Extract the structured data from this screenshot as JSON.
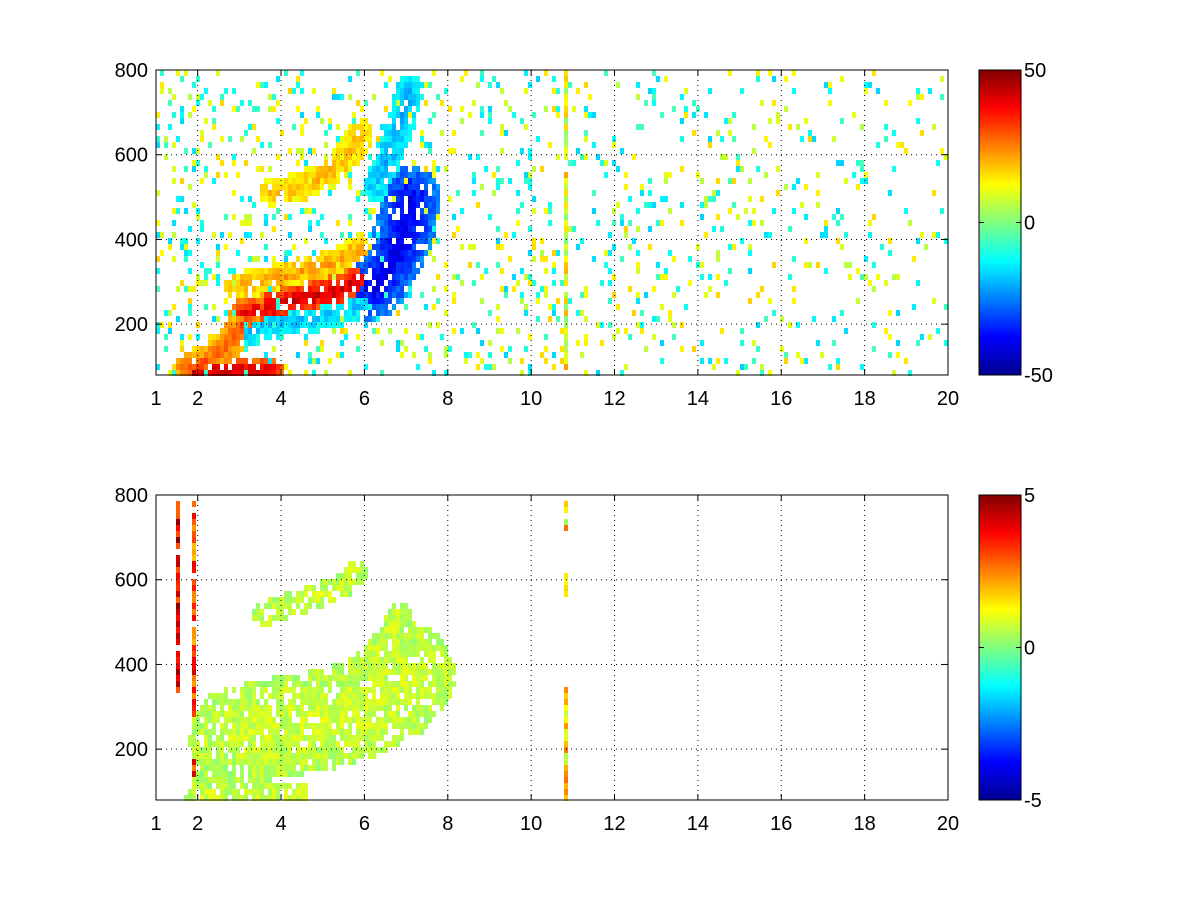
{
  "figure": {
    "background": "#ffffff"
  },
  "chart_data": [
    {
      "type": "heatmap",
      "title": "",
      "xlabel": "",
      "ylabel": "",
      "xlim": [
        1,
        20
      ],
      "ylim": [
        80,
        800
      ],
      "xticks": [
        1,
        2,
        4,
        6,
        8,
        10,
        12,
        14,
        16,
        18,
        20
      ],
      "xtick_labels": [
        "1",
        "2",
        "4",
        "6",
        "8",
        "10",
        "12",
        "14",
        "16",
        "18",
        "20"
      ],
      "yticks": [
        200,
        400,
        600,
        800
      ],
      "ytick_labels": [
        "200",
        "400",
        "600",
        "800"
      ],
      "grid": true,
      "colormap": "jet",
      "clim": [
        -50,
        50
      ],
      "colorbar_ticks": [
        50,
        0,
        -50
      ],
      "colorbar_tick_labels": [
        "50",
        "0",
        "-50"
      ],
      "background_points_density": 0.18,
      "features": [
        {
          "name": "lower-ridge",
          "points": [
            [
              3.2,
              220
            ],
            [
              3.6,
              235
            ],
            [
              4.0,
              250
            ],
            [
              4.5,
              260
            ],
            [
              5.0,
              270
            ],
            [
              5.4,
              280
            ],
            [
              5.8,
              300
            ]
          ],
          "value": 42,
          "width": 18
        },
        {
          "name": "lower-ridge-upper-edge",
          "points": [
            [
              3.0,
              290
            ],
            [
              3.6,
              300
            ],
            [
              4.2,
              315
            ],
            [
              4.8,
              330
            ],
            [
              5.4,
              350
            ],
            [
              5.9,
              380
            ]
          ],
          "value": 22,
          "width": 14
        },
        {
          "name": "upper-ridge",
          "points": [
            [
              3.8,
              510
            ],
            [
              4.3,
              520
            ],
            [
              4.8,
              540
            ],
            [
              5.3,
              570
            ],
            [
              5.7,
              610
            ],
            [
              5.9,
              650
            ]
          ],
          "value": 20,
          "width": 14
        },
        {
          "name": "left-diagonal",
          "points": [
            [
              1.8,
              90
            ],
            [
              2.4,
              120
            ],
            [
              2.8,
              160
            ],
            [
              3.2,
              210
            ],
            [
              3.6,
              240
            ]
          ],
          "value": 30,
          "width": 16
        },
        {
          "name": "bottom-hot-strip",
          "points": [
            [
              1.8,
              90
            ],
            [
              2.5,
              90
            ],
            [
              3.2,
              90
            ],
            [
              3.8,
              92
            ]
          ],
          "value": 45,
          "width": 10
        },
        {
          "name": "blue-arc",
          "points": [
            [
              6.2,
              280
            ],
            [
              6.5,
              320
            ],
            [
              6.8,
              380
            ],
            [
              7.0,
              430
            ],
            [
              7.1,
              500
            ]
          ],
          "value": -40,
          "width": 30
        },
        {
          "name": "cyan-arc-upper",
          "points": [
            [
              6.3,
              520
            ],
            [
              6.6,
              600
            ],
            [
              6.9,
              680
            ],
            [
              7.1,
              760
            ]
          ],
          "value": -20,
          "width": 14
        },
        {
          "name": "cyan-under-ridge",
          "points": [
            [
              3.2,
              180
            ],
            [
              3.8,
              200
            ],
            [
              4.6,
              210
            ],
            [
              5.4,
              230
            ],
            [
              6.0,
              250
            ]
          ],
          "value": -18,
          "width": 14
        }
      ],
      "vertical_stripes": [
        {
          "x": 10.8,
          "value": 10,
          "width": 0.08
        }
      ]
    },
    {
      "type": "heatmap",
      "title": "",
      "xlabel": "",
      "ylabel": "",
      "xlim": [
        1,
        20
      ],
      "ylim": [
        80,
        800
      ],
      "xticks": [
        1,
        2,
        4,
        6,
        8,
        10,
        12,
        14,
        16,
        18,
        20
      ],
      "xtick_labels": [
        "1",
        "2",
        "4",
        "6",
        "8",
        "10",
        "12",
        "14",
        "16",
        "18",
        "20"
      ],
      "yticks": [
        200,
        400,
        600,
        800
      ],
      "ytick_labels": [
        "200",
        "400",
        "600",
        "800"
      ],
      "grid": true,
      "colormap": "jet",
      "clim": [
        -5,
        5
      ],
      "colorbar_ticks": [
        5,
        0,
        -5
      ],
      "colorbar_tick_labels": [
        "5",
        "0",
        "-5"
      ],
      "background_points_density": 0.0,
      "features": [
        {
          "name": "lower-band",
          "points": [
            [
              3.0,
              230
            ],
            [
              3.6,
              245
            ],
            [
              4.2,
              255
            ],
            [
              4.8,
              265
            ],
            [
              5.4,
              280
            ],
            [
              6.0,
              300
            ],
            [
              6.6,
              330
            ],
            [
              7.0,
              380
            ]
          ],
          "value": 0.8,
          "width": 50
        },
        {
          "name": "upper-band",
          "points": [
            [
              3.6,
              520
            ],
            [
              4.2,
              540
            ],
            [
              4.8,
              560
            ],
            [
              5.4,
              580
            ],
            [
              5.8,
              620
            ]
          ],
          "value": 0.8,
          "width": 12
        },
        {
          "name": "right-arc",
          "points": [
            [
              6.1,
              400
            ],
            [
              6.5,
              450
            ],
            [
              6.9,
              520
            ]
          ],
          "value": 0.8,
          "width": 12
        },
        {
          "name": "bottom-band",
          "points": [
            [
              2.0,
              90
            ],
            [
              3.0,
              90
            ],
            [
              4.0,
              90
            ],
            [
              4.5,
              90
            ]
          ],
          "value": 0.8,
          "width": 12
        },
        {
          "name": "left-diagonal",
          "points": [
            [
              2.2,
              120
            ],
            [
              2.6,
              160
            ],
            [
              3.0,
              200
            ],
            [
              3.4,
              230
            ]
          ],
          "value": 0.5,
          "width": 14
        }
      ],
      "vertical_stripes": [
        {
          "x": 10.8,
          "value": 1.5,
          "width": 0.08,
          "ranges": [
            [
              80,
              350
            ],
            [
              540,
              620
            ],
            [
              700,
              780
            ]
          ]
        },
        {
          "x": 1.55,
          "value": 4,
          "width": 0.04,
          "ranges": [
            [
              330,
              790
            ]
          ]
        },
        {
          "x": 1.9,
          "value": 3,
          "width": 0.03,
          "ranges": [
            [
              120,
              790
            ]
          ]
        }
      ]
    }
  ]
}
